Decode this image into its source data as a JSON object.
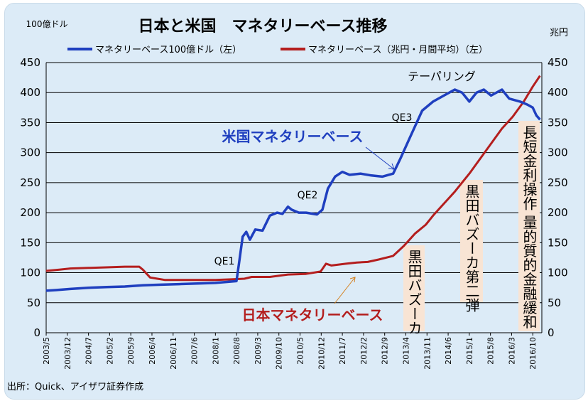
{
  "chart_data": {
    "type": "line",
    "title": "日本と米国　マネタリーベース推移",
    "y_left_unit": "100億ドル",
    "y_right_unit": "兆円",
    "y_range": [
      0,
      450
    ],
    "y_ticks": [
      0,
      50,
      100,
      150,
      200,
      250,
      300,
      350,
      400,
      450
    ],
    "x_range": [
      2003.333,
      2017.0
    ],
    "x_ticks": [
      "2003/5",
      "2003/12",
      "2004/7",
      "2005/2",
      "2005/9",
      "2006/4",
      "2006/11",
      "2007/6",
      "2008/1",
      "2008/8",
      "2009/3",
      "2009/10",
      "2010/5",
      "2010/12",
      "2011/7",
      "2012/2",
      "2012/9",
      "2013/4",
      "2013/11",
      "2014/6",
      "2015/1",
      "2015/8",
      "2016/3",
      "2016/10"
    ],
    "source": "出所：Quick、アイザワ証券作成",
    "colors": {
      "us": "#1f3fbf",
      "jp": "#b41e1e",
      "grid": "#000000"
    },
    "series": [
      {
        "name": "マネタリーベース100億ドル（左）",
        "key": "us",
        "x": [
          2003.33,
          2003.6,
          2004.0,
          2004.5,
          2005.0,
          2005.5,
          2006.0,
          2006.5,
          2007.0,
          2007.5,
          2008.0,
          2008.58,
          2008.65,
          2008.75,
          2008.85,
          2008.95,
          2009.1,
          2009.3,
          2009.5,
          2009.7,
          2009.85,
          2010.0,
          2010.1,
          2010.3,
          2010.5,
          2010.8,
          2010.95,
          2011.1,
          2011.3,
          2011.5,
          2011.7,
          2012.0,
          2012.3,
          2012.6,
          2012.9,
          2013.1,
          2013.4,
          2013.7,
          2014.0,
          2014.3,
          2014.6,
          2014.8,
          2015.0,
          2015.2,
          2015.4,
          2015.6,
          2015.9,
          2016.1,
          2016.4,
          2016.6,
          2016.75,
          2016.85,
          2016.95
        ],
        "values": [
          70,
          71,
          73,
          75,
          76,
          77,
          79,
          80,
          81,
          82,
          83,
          86,
          115,
          160,
          168,
          155,
          172,
          170,
          195,
          200,
          198,
          210,
          205,
          200,
          200,
          197,
          205,
          240,
          260,
          268,
          263,
          265,
          262,
          260,
          265,
          290,
          330,
          370,
          385,
          395,
          405,
          400,
          385,
          400,
          405,
          395,
          405,
          390,
          385,
          380,
          375,
          362,
          355
        ]
      },
      {
        "name": "マネタリーベース（兆円・月間平均）（左）",
        "key": "jp",
        "x": [
          2003.33,
          2003.7,
          2004.0,
          2004.5,
          2005.0,
          2005.5,
          2005.9,
          2006.0,
          2006.2,
          2006.4,
          2006.6,
          2007.0,
          2007.5,
          2008.0,
          2008.5,
          2008.8,
          2009.0,
          2009.5,
          2010.0,
          2010.5,
          2010.9,
          2011.05,
          2011.2,
          2011.6,
          2011.9,
          2012.2,
          2012.5,
          2012.9,
          2013.2,
          2013.5,
          2013.8,
          2014.0,
          2014.3,
          2014.6,
          2014.8,
          2015.0,
          2015.3,
          2015.6,
          2015.9,
          2016.2,
          2016.5,
          2016.75,
          2016.95
        ],
        "values": [
          103,
          105,
          107,
          108,
          109,
          110,
          110,
          105,
          92,
          90,
          88,
          88,
          88,
          88,
          89,
          90,
          93,
          93,
          97,
          98,
          102,
          115,
          112,
          115,
          117,
          118,
          122,
          128,
          145,
          165,
          180,
          195,
          215,
          235,
          250,
          265,
          290,
          315,
          340,
          360,
          385,
          410,
          428
        ]
      }
    ],
    "annotations": {
      "qe1": "QE1",
      "qe2": "QE2",
      "qe3": "QE3",
      "tapering": "テーパリング",
      "us_label": "米国マネタリーベース",
      "jp_label": "日本マネタリーベース",
      "bazooka1": "黒田バズーカ",
      "bazooka2": "黒田バズーカ第二弾",
      "policy": "長短金利操作 量的質的金融緩和"
    }
  }
}
